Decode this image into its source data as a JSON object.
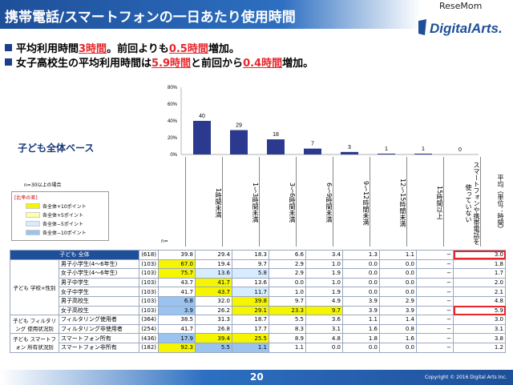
{
  "header": {
    "title": "携帯電話/スマートフォンの一日あたり使用時間",
    "watermark": "ReseMom",
    "logo": "DigitalArts."
  },
  "bullets": [
    {
      "pre": "平均利用時間",
      "h1": "3時間",
      "mid": "。前回よりも",
      "h2": "0.5時間",
      "post": "増加。"
    },
    {
      "pre": "女子高校生の平均利用時間は",
      "h1": "5.9時間",
      "mid": "と前回から",
      "h2": "0.4時間",
      "post": "増加。"
    }
  ],
  "basis_label": "子ども全体ベース",
  "note": "n=30以上の場合",
  "legend": {
    "title": "[比率の差]",
    "items": [
      {
        "label": "各全体+10ポイント",
        "color": "#f5f500"
      },
      {
        "label": "各全体+5ポイント",
        "color": "#ffffa6"
      },
      {
        "label": "各全体−5ポイント",
        "color": "#d7ecff"
      },
      {
        "label": "各全体−10ポイント",
        "color": "#9bc3f0"
      }
    ]
  },
  "n_label": "n=",
  "chart_data": {
    "type": "bar",
    "categories": [
      "1時間未満",
      "1〜3時間未満",
      "3〜6時間未満",
      "6〜9時間未満",
      "9〜12時間未満",
      "12〜15時間未満",
      "15時間以上",
      "スマートフォンや携帯電話を使っていない"
    ],
    "values": [
      40,
      29,
      18,
      7,
      3,
      1,
      1,
      0
    ],
    "value_labels": [
      "40",
      "29",
      "18",
      "7",
      "3",
      "1",
      "1",
      "0"
    ],
    "yticks": [
      "0%",
      "20%",
      "40%",
      "60%",
      "80%"
    ],
    "ylim": [
      0,
      80
    ],
    "bar_color": "#2b3a8f"
  },
  "avg_header": "平均（単位：時間）",
  "rows": [
    {
      "group": "子ども 全体",
      "label": "",
      "n": "(618)",
      "v": [
        "39.8",
        "29.4",
        "18.3",
        "6.6",
        "3.4",
        "1.3",
        "1.1",
        "−"
      ],
      "avg": "3.0",
      "hl": [
        "",
        "",
        "",
        "",
        "",
        "",
        "",
        ""
      ],
      "red": true
    },
    {
      "group": "子ども 学校×性別",
      "label": "男子小学生(4〜6年生)",
      "n": "(103)",
      "v": [
        "67.0",
        "19.4",
        "9.7",
        "2.9",
        "1.0",
        "0.0",
        "0.0",
        "−"
      ],
      "avg": "1.8",
      "hl": [
        "y",
        "",
        "",
        "",
        "",
        "",
        "",
        ""
      ],
      "red": false
    },
    {
      "group": "",
      "label": "女子小学生(4〜6年生)",
      "n": "(103)",
      "v": [
        "75.7",
        "13.6",
        "5.8",
        "2.9",
        "1.9",
        "0.0",
        "0.0",
        "−"
      ],
      "avg": "1.7",
      "hl": [
        "y",
        "b",
        "b",
        "",
        "",
        "",
        "",
        ""
      ],
      "red": false
    },
    {
      "group": "",
      "label": "男子中学生",
      "n": "(103)",
      "v": [
        "43.7",
        "41.7",
        "13.6",
        "0.0",
        "1.0",
        "0.0",
        "0.0",
        "−"
      ],
      "avg": "2.0",
      "hl": [
        "",
        "y",
        "",
        "",
        "",
        "",
        "",
        ""
      ],
      "red": false
    },
    {
      "group": "",
      "label": "女子中学生",
      "n": "(103)",
      "v": [
        "41.7",
        "43.7",
        "11.7",
        "1.0",
        "1.9",
        "0.0",
        "0.0",
        "−"
      ],
      "avg": "2.1",
      "hl": [
        "",
        "y",
        "b",
        "",
        "",
        "",
        "",
        ""
      ],
      "red": false
    },
    {
      "group": "",
      "label": "男子高校生",
      "n": "(103)",
      "v": [
        "6.8",
        "32.0",
        "39.8",
        "9.7",
        "4.9",
        "3.9",
        "2.9",
        "−"
      ],
      "avg": "4.8",
      "hl": [
        "B",
        "",
        "y",
        "",
        "",
        "",
        "",
        ""
      ],
      "red": false
    },
    {
      "group": "",
      "label": "女子高校生",
      "n": "(103)",
      "v": [
        "3.9",
        "26.2",
        "29.1",
        "23.3",
        "9.7",
        "3.9",
        "3.9",
        "−"
      ],
      "avg": "5.9",
      "hl": [
        "B",
        "",
        "y",
        "y",
        "y",
        "",
        "",
        ""
      ],
      "red": true
    },
    {
      "group": "子ども フィルタリング 使用状況別",
      "label": "フィルタリング使用者",
      "n": "(364)",
      "v": [
        "38.5",
        "31.3",
        "18.7",
        "5.5",
        "3.6",
        "1.1",
        "1.4",
        "−"
      ],
      "avg": "3.0",
      "hl": [
        "",
        "",
        "",
        "",
        "",
        "",
        "",
        ""
      ],
      "red": false
    },
    {
      "group": "",
      "label": "フィルタリング非使用者",
      "n": "(254)",
      "v": [
        "41.7",
        "26.8",
        "17.7",
        "8.3",
        "3.1",
        "1.6",
        "0.8",
        "−"
      ],
      "avg": "3.1",
      "hl": [
        "",
        "",
        "",
        "",
        "",
        "",
        "",
        ""
      ],
      "red": false
    },
    {
      "group": "子ども スマートフォン 所有状況別",
      "label": "スマートフォン所有",
      "n": "(436)",
      "v": [
        "17.9",
        "39.4",
        "25.5",
        "8.9",
        "4.8",
        "1.8",
        "1.6",
        "−"
      ],
      "avg": "3.8",
      "hl": [
        "B",
        "y",
        "y",
        "",
        "",
        "",
        "",
        ""
      ],
      "red": false
    },
    {
      "group": "",
      "label": "スマートフォン非所有",
      "n": "(182)",
      "v": [
        "92.3",
        "5.5",
        "1.1",
        "1.1",
        "0.0",
        "0.0",
        "0.0",
        "−"
      ],
      "avg": "1.2",
      "hl": [
        "y",
        "B",
        "B",
        "",
        "",
        "",
        "",
        ""
      ],
      "red": false
    }
  ],
  "footer": {
    "page": "20",
    "copyright": "Copyright © 2016 Digital Arts Inc."
  }
}
